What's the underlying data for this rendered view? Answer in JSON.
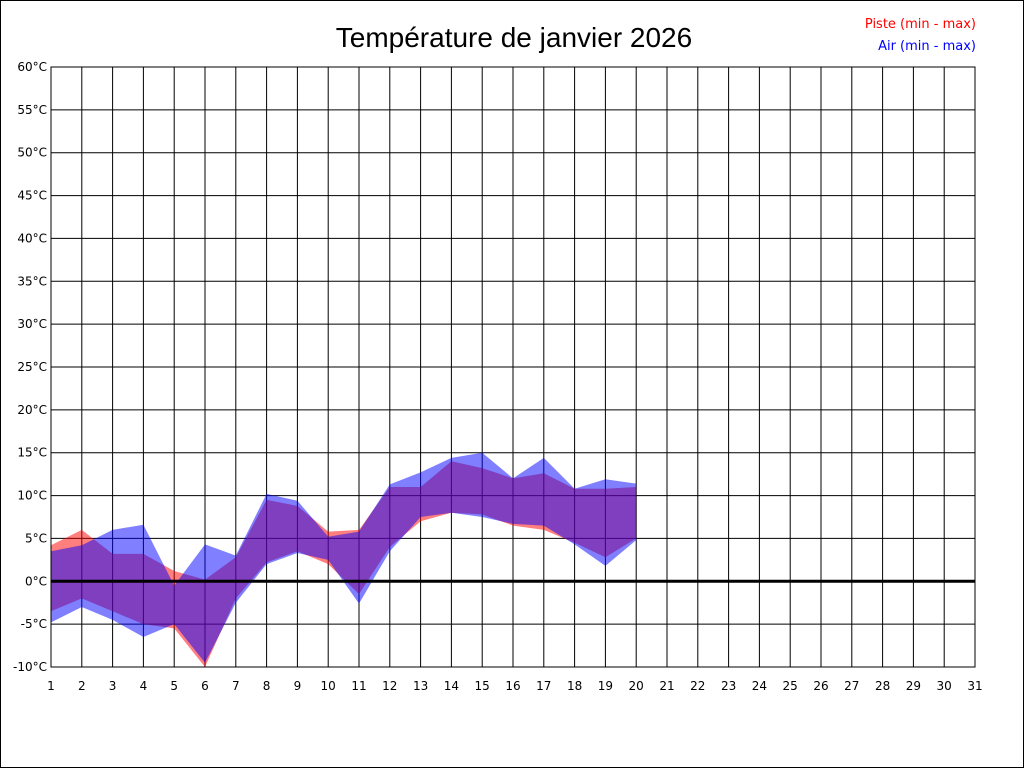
{
  "chart_data": {
    "type": "area",
    "title": "Température de janvier 2026",
    "xlabel": "",
    "ylabel": "",
    "x": [
      1,
      2,
      3,
      4,
      5,
      6,
      7,
      8,
      9,
      10,
      11,
      12,
      13,
      14,
      15,
      16,
      17,
      18,
      19,
      20,
      21,
      22,
      23,
      24,
      25,
      26,
      27,
      28,
      29,
      30,
      31
    ],
    "xlim": [
      1,
      31
    ],
    "ylim": [
      -10,
      60
    ],
    "y_ticks": [
      -10,
      -5,
      0,
      5,
      10,
      15,
      20,
      25,
      30,
      35,
      40,
      45,
      50,
      55,
      60
    ],
    "y_tick_labels": [
      "-10°C",
      "-5°C",
      "0°C",
      "5°C",
      "10°C",
      "15°C",
      "20°C",
      "25°C",
      "30°C",
      "35°C",
      "40°C",
      "45°C",
      "50°C",
      "55°C",
      "60°C"
    ],
    "grid": true,
    "zero_line": true,
    "legend_position": "top-right",
    "series": [
      {
        "name": "Piste (min - max)",
        "color": "#ff0000",
        "fill": "rgba(255,0,0,0.5)",
        "x": [
          1,
          2,
          3,
          4,
          5,
          6,
          7,
          8,
          9,
          10,
          11,
          12,
          13,
          14,
          15,
          16,
          17,
          18,
          19,
          20
        ],
        "min": [
          -3.5,
          -2,
          -3.5,
          -5,
          -5.5,
          -10,
          -2,
          2.2,
          3.5,
          2,
          -1.5,
          4,
          7,
          8,
          7.8,
          6.5,
          6,
          4.5,
          2.8,
          5
        ],
        "max": [
          4.2,
          6,
          3.2,
          3.2,
          1.2,
          0.2,
          2.8,
          9.5,
          8.8,
          5.8,
          6,
          11,
          11,
          14,
          13.2,
          12,
          12.6,
          10.8,
          10.8,
          11
        ]
      },
      {
        "name": "Air (min - max)",
        "color": "#0000ff",
        "fill": "rgba(0,0,255,0.5)",
        "x": [
          1,
          2,
          3,
          4,
          5,
          6,
          7,
          8,
          9,
          10,
          11,
          12,
          13,
          14,
          15,
          16,
          17,
          18,
          19,
          20
        ],
        "min": [
          -4.8,
          -3,
          -4.5,
          -6.5,
          -5,
          -9.5,
          -2.5,
          2,
          3.3,
          2.5,
          -2.6,
          3.5,
          7.5,
          8,
          7.5,
          6.7,
          6.5,
          4.3,
          1.8,
          4.8
        ],
        "max": [
          3.5,
          4.2,
          6,
          6.6,
          -0.5,
          4.3,
          3,
          10.2,
          9.4,
          5.2,
          5.8,
          11.3,
          12.7,
          14.4,
          15,
          12,
          14.4,
          10.8,
          11.9,
          11.4
        ]
      }
    ]
  }
}
